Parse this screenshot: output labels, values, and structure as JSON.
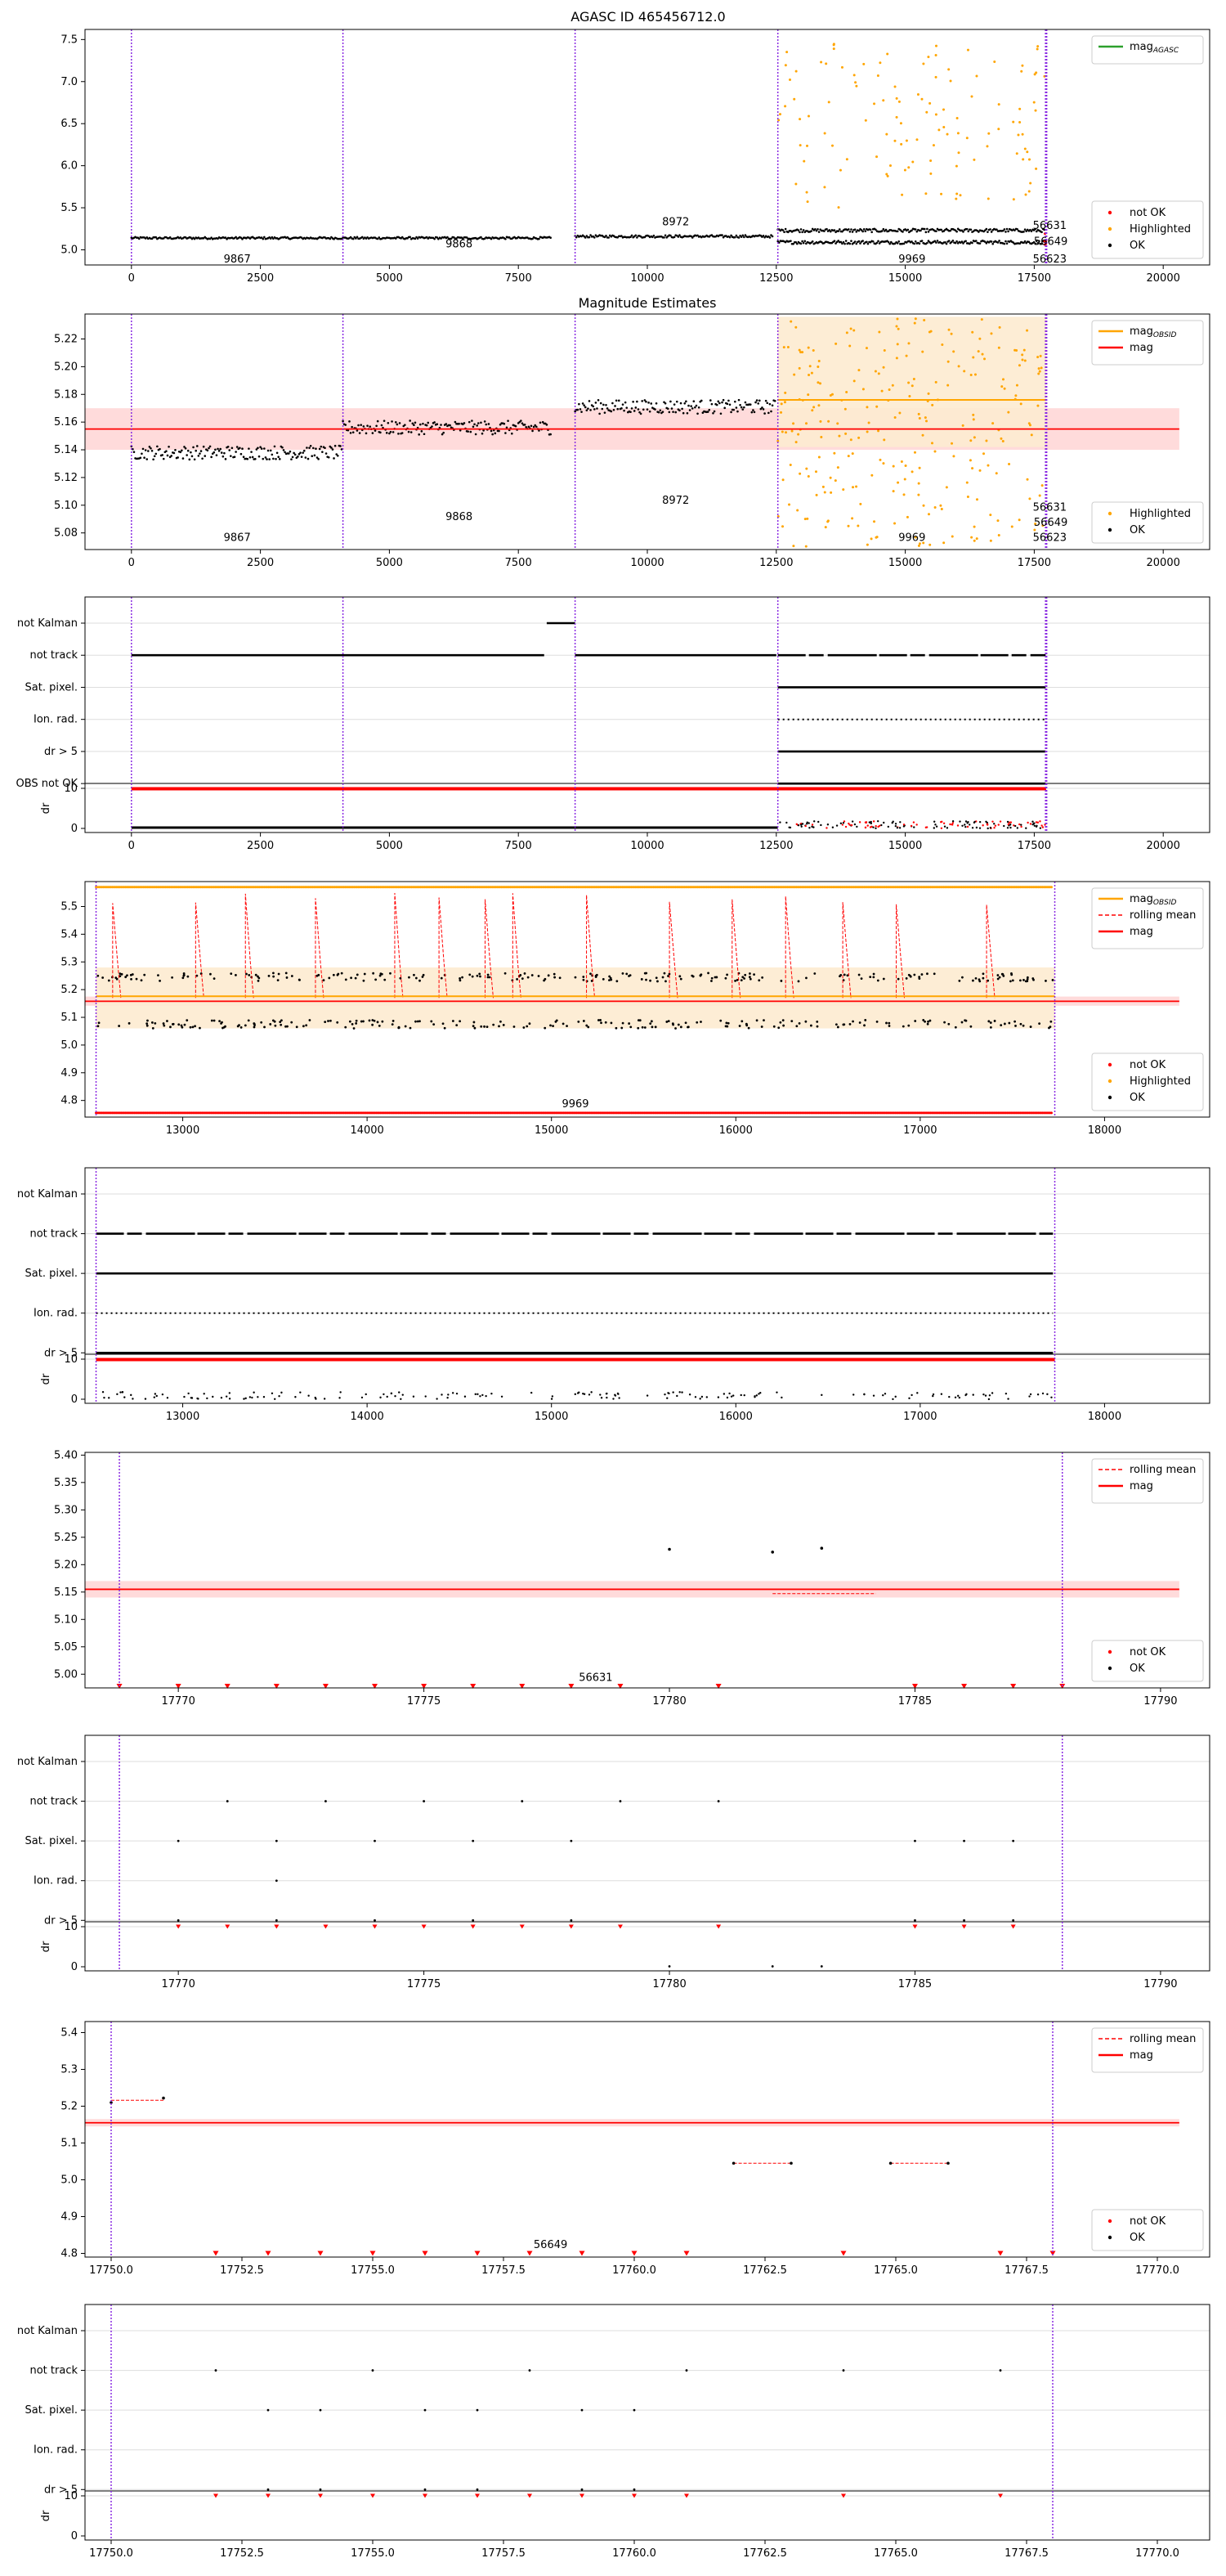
{
  "figure_title": "AGASC ID 465456712.0",
  "colors": {
    "ok": "#000000",
    "not_ok": "#ff0000",
    "highlighted": "#ffa500",
    "mag_line": "#ff0000",
    "mag_band": "#ffcccc",
    "obsid_line": "#ffa500",
    "obsid_band": "#fdebd0",
    "agasc_legend": "#2ca02c",
    "obs_boundary": "#8a2be2",
    "grid": "#dddddd",
    "axis": "#000000"
  },
  "chart_data": [
    {
      "type": "scatter",
      "title": "AGASC ID 465456712.0",
      "xlim": [
        -900,
        20900
      ],
      "ylim": [
        4.82,
        7.62
      ],
      "xticks": [
        0,
        2500,
        5000,
        7500,
        10000,
        12500,
        15000,
        17500,
        20000
      ],
      "yticks": [
        5.0,
        5.5,
        6.0,
        6.5,
        7.0,
        7.5
      ],
      "obs_boundaries": [
        0,
        4100,
        8600,
        12530,
        17730
      ],
      "obsid_labels": [
        {
          "text": "9867",
          "x": 2050,
          "y": 4.8
        },
        {
          "text": "9868",
          "x": 6350,
          "y": 5.01
        },
        {
          "text": "8972",
          "x": 10550,
          "y": 5.27
        },
        {
          "text": "9969",
          "x": 15130,
          "y": 4.82
        },
        {
          "text": "56631",
          "x": 17800,
          "y": 5.23
        },
        {
          "text": "56649",
          "x": 17820,
          "y": 5.04
        },
        {
          "text": "56623",
          "x": 17800,
          "y": 4.81
        }
      ],
      "series": [
        {
          "name": "OK",
          "kind": "band",
          "segments": [
            {
              "x": [
                0,
                8150
              ],
              "y": 5.14,
              "spread": 0.025
            },
            {
              "x": [
                8600,
                12450
              ],
              "y": 5.16,
              "spread": 0.03
            },
            {
              "x": [
                12530,
                17720
              ],
              "y": 5.23,
              "spread": 0.04
            },
            {
              "x": [
                12530,
                17720
              ],
              "y": 5.09,
              "spread": 0.04
            }
          ]
        },
        {
          "name": "Highlighted",
          "kind": "scatter",
          "x_range": [
            12530,
            17720
          ],
          "y_range": [
            5.5,
            7.5
          ],
          "count": 120
        },
        {
          "name": "not OK",
          "kind": "scatter",
          "x_range": [
            17700,
            17730
          ],
          "y_range": [
            5.0,
            5.2
          ],
          "count": 5
        }
      ],
      "legend_top": [
        {
          "label": "magAGASC",
          "label_main": "mag",
          "label_sub": "AGASC"
        }
      ],
      "legend_bottom": [
        "not OK",
        "Highlighted",
        "OK"
      ]
    },
    {
      "type": "scatter",
      "title": "Magnitude Estimates",
      "xlim": [
        -900,
        20900
      ],
      "ylim": [
        5.068,
        5.238
      ],
      "xticks": [
        0,
        2500,
        5000,
        7500,
        10000,
        12500,
        15000,
        17500,
        20000
      ],
      "yticks": [
        5.08,
        5.1,
        5.12,
        5.14,
        5.16,
        5.18,
        5.2,
        5.22
      ],
      "mag": 5.155,
      "mag_band": [
        5.14,
        5.17
      ],
      "obsid_mag": 5.176,
      "obsid_band": [
        5.142,
        5.236
      ],
      "obs_boundaries": [
        0,
        4100,
        8600,
        12530,
        17730
      ],
      "obsid_labels": [
        {
          "text": "9867",
          "x": 2050,
          "y": 5.073
        },
        {
          "text": "9868",
          "x": 6350,
          "y": 5.088
        },
        {
          "text": "8972",
          "x": 10550,
          "y": 5.1
        },
        {
          "text": "9969",
          "x": 15130,
          "y": 5.073
        },
        {
          "text": "56631",
          "x": 17800,
          "y": 5.095
        },
        {
          "text": "56649",
          "x": 17820,
          "y": 5.084
        },
        {
          "text": "56623",
          "x": 17800,
          "y": 5.073
        }
      ],
      "series": [
        {
          "name": "OK",
          "kind": "band",
          "segments": [
            {
              "x": [
                0,
                4100
              ],
              "y": 5.138,
              "spread": 0.01
            },
            {
              "x": [
                4100,
                8150
              ],
              "y": 5.156,
              "spread": 0.01
            },
            {
              "x": [
                8600,
                12500
              ],
              "y": 5.171,
              "spread": 0.01
            }
          ]
        },
        {
          "name": "Highlighted",
          "kind": "scatter",
          "x_range": [
            12530,
            17720
          ],
          "y_range": [
            5.07,
            5.235
          ],
          "count": 260
        }
      ],
      "legend_top": [
        {
          "label": "magOBSID",
          "label_main": "mag",
          "label_sub": "OBSID"
        },
        {
          "label": "mag"
        }
      ],
      "legend_bottom": [
        "Highlighted",
        "OK"
      ]
    },
    {
      "type": "flags",
      "xlim": [
        -900,
        20900
      ],
      "xticks": [
        0,
        2500,
        5000,
        7500,
        10000,
        12500,
        15000,
        17500,
        20000
      ],
      "flag_labels": [
        "not Kalman",
        "not track",
        "Sat. pixel.",
        "Ion. rad.",
        "dr > 5",
        "OBS not OK"
      ],
      "flag_segments": [
        {
          "flag": "not Kalman",
          "x": [
            8050,
            8600
          ],
          "style": "solid"
        },
        {
          "flag": "not track",
          "x": [
            0,
            8000
          ],
          "style": "solid"
        },
        {
          "flag": "not track",
          "x": [
            8600,
            12500
          ],
          "style": "solid"
        },
        {
          "flag": "not track",
          "x": [
            12530,
            17720
          ],
          "style": "broken"
        },
        {
          "flag": "Sat. pixel.",
          "x": [
            12530,
            17720
          ],
          "style": "solid"
        },
        {
          "flag": "Ion. rad.",
          "x": [
            12530,
            17720
          ],
          "style": "dotted"
        },
        {
          "flag": "dr > 5",
          "x": [
            12530,
            17720
          ],
          "style": "solid"
        },
        {
          "flag": "OBS not OK",
          "x": [
            12530,
            17720
          ],
          "style": "solid"
        }
      ],
      "dr_label": "dr",
      "dr_ticks": [
        0,
        10
      ],
      "dr_top_range": [
        0,
        17730
      ],
      "dr_bottom_range": [
        12530,
        17730
      ],
      "obs_boundaries": [
        0,
        4100,
        8600,
        12530,
        17730
      ]
    },
    {
      "type": "scatter",
      "xlim": [
        12470,
        18570
      ],
      "ylim": [
        4.74,
        5.59
      ],
      "xticks": [
        13000,
        14000,
        15000,
        16000,
        17000,
        18000
      ],
      "yticks": [
        4.8,
        4.9,
        5.0,
        5.1,
        5.2,
        5.3,
        5.4,
        5.5
      ],
      "mag": 5.158,
      "mag_band": [
        5.142,
        5.175
      ],
      "obsid_mag": 5.176,
      "obsid_band": [
        5.06,
        5.28
      ],
      "obs_boundaries": [
        12530,
        17730
      ],
      "obsid_labels": [
        {
          "text": "9969",
          "x": 15130,
          "y": 4.77
        }
      ],
      "rolling_mean_spikes": [
        12620,
        13070,
        13340,
        13720,
        14150,
        14390,
        14640,
        14790,
        15190,
        15640,
        15980,
        16270,
        16580,
        16870,
        17360
      ],
      "series": [
        {
          "name": "OK",
          "kind": "twin-band",
          "x_range": [
            12530,
            17720
          ],
          "levels": [
            5.245,
            5.075
          ],
          "count": 220
        },
        {
          "name": "Highlighted",
          "kind": "edge",
          "x_range": [
            12530,
            17720
          ],
          "y": 5.57
        },
        {
          "name": "not OK",
          "kind": "edge",
          "x_range": [
            12530,
            17720
          ],
          "y": 4.755
        }
      ],
      "legend_top": [
        {
          "label": "magOBSID",
          "label_main": "mag",
          "label_sub": "OBSID"
        },
        {
          "label": "rolling mean"
        },
        {
          "label": "mag"
        }
      ],
      "legend_bottom": [
        "not OK",
        "Highlighted",
        "OK"
      ]
    },
    {
      "type": "flags",
      "xlim": [
        12470,
        18570
      ],
      "xticks": [
        13000,
        14000,
        15000,
        16000,
        17000,
        18000
      ],
      "flag_labels": [
        "not Kalman",
        "not track",
        "Sat. pixel.",
        "Ion. rad.",
        "dr > 5"
      ],
      "flag_segments": [
        {
          "flag": "not track",
          "x": [
            12530,
            17720
          ],
          "style": "broken"
        },
        {
          "flag": "Sat. pixel.",
          "x": [
            12530,
            17720
          ],
          "style": "solid"
        },
        {
          "flag": "Ion. rad.",
          "x": [
            12530,
            17720
          ],
          "style": "dotted"
        },
        {
          "flag": "dr > 5",
          "x": [
            12530,
            17720
          ],
          "style": "solid"
        }
      ],
      "dr_label": "dr",
      "dr_ticks": [
        0,
        10
      ],
      "dr_top_range": [
        12530,
        17730
      ],
      "dr_bottom_range": [
        12530,
        17730
      ],
      "obs_boundaries": [
        12530,
        17730
      ]
    },
    {
      "type": "scatter",
      "xlim": [
        17768.1,
        17791.0
      ],
      "ylim": [
        4.975,
        5.405
      ],
      "xticks": [
        17770,
        17775,
        17780,
        17785,
        17790
      ],
      "yticks": [
        5.0,
        5.05,
        5.1,
        5.15,
        5.2,
        5.25,
        5.3,
        5.35,
        5.4
      ],
      "mag": 5.155,
      "mag_band": [
        5.14,
        5.17
      ],
      "obs_boundaries": [
        17768.8,
        17788.0
      ],
      "obsid_labels": [
        {
          "text": "56631",
          "x": 17778.5,
          "y": 4.985
        }
      ],
      "rolling_mean_segments": [
        {
          "x": [
            17782.1,
            17784.2
          ],
          "y": 5.147
        }
      ],
      "points_ok": [
        [
          17780.0,
          5.228
        ],
        [
          17782.1,
          5.223
        ],
        [
          17783.1,
          5.23
        ]
      ],
      "points_not_ok": [
        [
          17768.8,
          4.978
        ],
        [
          17770.0,
          4.978
        ],
        [
          17771.0,
          4.978
        ],
        [
          17772.0,
          4.978
        ],
        [
          17773.0,
          4.978
        ],
        [
          17774.0,
          4.978
        ],
        [
          17775.0,
          4.978
        ],
        [
          17776.0,
          4.978
        ],
        [
          17777.0,
          4.978
        ],
        [
          17778.0,
          4.978
        ],
        [
          17779.0,
          4.978
        ],
        [
          17781.0,
          4.978
        ],
        [
          17785.0,
          4.978
        ],
        [
          17786.0,
          4.978
        ],
        [
          17787.0,
          4.978
        ],
        [
          17788.0,
          4.978
        ]
      ],
      "legend_top": [
        {
          "label": "rolling mean"
        },
        {
          "label": "mag"
        }
      ],
      "legend_bottom": [
        "not OK",
        "OK"
      ]
    },
    {
      "type": "flags",
      "xlim": [
        17768.1,
        17791.0
      ],
      "xticks": [
        17770,
        17775,
        17780,
        17785,
        17790
      ],
      "flag_labels": [
        "not Kalman",
        "not track",
        "Sat. pixel.",
        "Ion. rad.",
        "dr > 5"
      ],
      "flag_points": [
        {
          "flag": "not track",
          "x": [
            17771,
            17773,
            17775,
            17777,
            17779,
            17781
          ]
        },
        {
          "flag": "Sat. pixel.",
          "x": [
            17770,
            17772,
            17774,
            17776,
            17778,
            17785,
            17786,
            17787
          ]
        },
        {
          "flag": "Ion. rad.",
          "x": [
            17772
          ]
        },
        {
          "flag": "dr > 5",
          "x": [
            17770,
            17772,
            17774,
            17776,
            17778,
            17785,
            17786,
            17787
          ]
        }
      ],
      "dr_label": "dr",
      "dr_ticks": [
        0,
        10
      ],
      "dr_top_points": [
        17770,
        17771,
        17772,
        17773,
        17774,
        17775,
        17776,
        17777,
        17778,
        17779,
        17781,
        17785,
        17786,
        17787
      ],
      "dr_bottom_points": [
        17780.0,
        17782.1,
        17783.1
      ],
      "obs_boundaries": [
        17768.8,
        17788.0
      ]
    },
    {
      "type": "scatter",
      "xlim": [
        17749.5,
        17771.0
      ],
      "ylim": [
        4.79,
        5.43
      ],
      "xticks": [
        17750.0,
        17752.5,
        17755.0,
        17757.5,
        17760.0,
        17762.5,
        17765.0,
        17767.5,
        17770.0
      ],
      "tick_labels": [
        "17750.0",
        "17752.5",
        "17755.0",
        "17757.5",
        "17760.0",
        "17762.5",
        "17765.0",
        "17767.5",
        "17770.0"
      ],
      "yticks": [
        4.8,
        4.9,
        5.0,
        5.1,
        5.2,
        5.3,
        5.4
      ],
      "mag": 5.155,
      "mag_band": [
        5.145,
        5.165
      ],
      "obs_boundaries": [
        17750.0,
        17768.0
      ],
      "obsid_labels": [
        {
          "text": "56649",
          "x": 17758.4,
          "y": 4.81
        }
      ],
      "rolling_mean_segments": [
        {
          "x": [
            17750.0,
            17751.0
          ],
          "y": 5.216
        },
        {
          "x": [
            17761.9,
            17763.0
          ],
          "y": 5.045
        },
        {
          "x": [
            17764.9,
            17766.0
          ],
          "y": 5.045
        }
      ],
      "points_ok": [
        [
          17750.0,
          5.21
        ],
        [
          17751.0,
          5.222
        ],
        [
          17761.9,
          5.045
        ],
        [
          17763.0,
          5.045
        ],
        [
          17764.9,
          5.045
        ],
        [
          17766.0,
          5.045
        ]
      ],
      "points_not_ok": [
        [
          17752.0,
          4.8
        ],
        [
          17753.0,
          4.8
        ],
        [
          17754.0,
          4.8
        ],
        [
          17755.0,
          4.8
        ],
        [
          17756.0,
          4.8
        ],
        [
          17757.0,
          4.8
        ],
        [
          17758.0,
          4.8
        ],
        [
          17759.0,
          4.8
        ],
        [
          17760.0,
          4.8
        ],
        [
          17761.0,
          4.8
        ],
        [
          17764.0,
          4.8
        ],
        [
          17767.0,
          4.8
        ],
        [
          17768.0,
          4.8
        ]
      ],
      "legend_top": [
        {
          "label": "rolling mean"
        },
        {
          "label": "mag"
        }
      ],
      "legend_bottom": [
        "not OK",
        "OK"
      ]
    },
    {
      "type": "flags",
      "xlim": [
        17749.5,
        17771.0
      ],
      "xticks": [
        17750.0,
        17752.5,
        17755.0,
        17757.5,
        17760.0,
        17762.5,
        17765.0,
        17767.5,
        17770.0
      ],
      "tick_labels": [
        "17750.0",
        "17752.5",
        "17755.0",
        "17757.5",
        "17760.0",
        "17762.5",
        "17765.0",
        "17767.5",
        "17770.0"
      ],
      "flag_labels": [
        "not Kalman",
        "not track",
        "Sat. pixel.",
        "Ion. rad.",
        "dr > 5"
      ],
      "flag_points": [
        {
          "flag": "not track",
          "x": [
            17752,
            17755,
            17758,
            17761,
            17764,
            17767
          ]
        },
        {
          "flag": "Sat. pixel.",
          "x": [
            17753,
            17754,
            17756,
            17757,
            17759,
            17760
          ]
        },
        {
          "flag": "dr > 5",
          "x": [
            17753,
            17754,
            17756,
            17757,
            17759,
            17760
          ]
        }
      ],
      "dr_label": "dr",
      "dr_ticks": [
        0,
        10
      ],
      "dr_top_points": [
        17752,
        17753,
        17754,
        17755,
        17756,
        17757,
        17758,
        17759,
        17760,
        17761,
        17764,
        17767
      ],
      "dr_bottom_points": [],
      "obs_boundaries": [
        17750.0,
        17768.0
      ]
    }
  ]
}
